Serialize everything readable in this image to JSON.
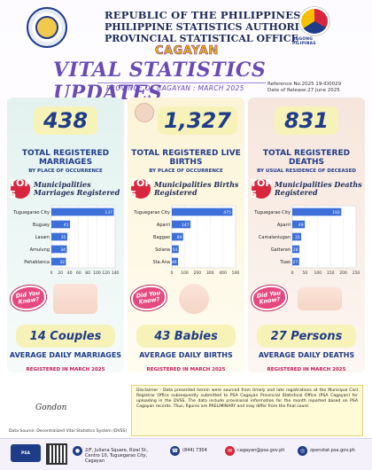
{
  "header": {
    "line1": "REPUBLIC OF THE PHILIPPINES",
    "line2": "PHILIPPINE STATISTICS AUTHORITY",
    "line3": "PROVINCIAL STATISTICAL OFFICE",
    "province": "CAGAYAN",
    "title": "VITAL STATISTICS UPDATES",
    "subtitle": "PROVINCE OF CAGAYAN : MARCH 2025",
    "reference": "Reference No.2025 19-ID0029",
    "release": "Date of Release:27 June 2025",
    "bagong_label": "BAGONG PILIPINAS"
  },
  "columns": [
    {
      "big_number": "438",
      "label": "TOTAL REGISTERED MARRIAGES",
      "sublabel": "BY PLACE OF OCCURRENCE",
      "top5_title": "Municipalities Marriages Registered",
      "average": "14 Couples",
      "avg_label": "AVERAGE DAILY MARRIAGES",
      "reg_label": "REGISTERED IN MARCH 2025"
    },
    {
      "big_number": "1,327",
      "label": "TOTAL REGISTERED LIVE BIRTHS",
      "sublabel": "BY PLACE OF OCCURRENCE",
      "top5_title": "Municipalities Births Registered",
      "average": "43 Babies",
      "avg_label": "AVERAGE DAILY BIRTHS",
      "reg_label": "REGISTERED IN MARCH 2025"
    },
    {
      "big_number": "831",
      "label": "TOTAL REGISTERED DEATHS",
      "sublabel": "BY USUAL RESIDENCE OF DECEASED",
      "top5_title": "Municipalities Deaths Registered",
      "average": "27 Persons",
      "avg_label": "AVERAGE DAILY DEATHS",
      "reg_label": "REGISTERED IN MARCH 2025"
    }
  ],
  "top5_badge": "TOP 5",
  "did_you_know": "Did You Know?",
  "chart_data": [
    {
      "type": "bar",
      "orientation": "horizontal",
      "categories": [
        "Tuguegarao City",
        "Buguey",
        "Lasam",
        "Amulung",
        "Peñablanca"
      ],
      "values": [
        137,
        41,
        35,
        34,
        32
      ],
      "xlim": [
        0,
        140
      ],
      "xticks": [
        "0",
        "20",
        "40",
        "60",
        "80",
        "100",
        "120",
        "140"
      ],
      "color": "#3d6fd9"
    },
    {
      "type": "bar",
      "orientation": "horizontal",
      "categories": [
        "Tuguegarao City",
        "Aparri",
        "Baggao",
        "Solana",
        "Sta.Ana"
      ],
      "values": [
        475,
        147,
        89,
        54,
        49
      ],
      "xlim": [
        0,
        500
      ],
      "xticks": [
        "0",
        "100",
        "200",
        "300",
        "400",
        "500"
      ],
      "color": "#3d6fd9"
    },
    {
      "type": "bar",
      "orientation": "horizontal",
      "categories": [
        "Tuguegarao City",
        "Aparri",
        "Camalaniugan",
        "Gattaran",
        "Tuao"
      ],
      "values": [
        192,
        49,
        35,
        28,
        27
      ],
      "xlim": [
        0,
        250
      ],
      "xticks": [
        "0",
        "50",
        "100",
        "150",
        "200",
        "250"
      ],
      "color": "#3d6fd9"
    }
  ],
  "disclaimer": "Disclaimer : Data presented herein were sourced from timely and late registrations at the Municipal Civil Registrar Office subsequently submitted to PSA Cagayan Provincial Statistical Office (PSA Cagayan) for uploading in the DVSS. The data include provisional information for the month reported based on PSA Cagayan records. Thus, figures are PRELIMINARY and may differ from the final count.",
  "source": "Data Source: Decentralized Vital Statistics System (DVSS)",
  "footer": {
    "address": "2/F, Juliana Square, Rizal St., Centro 10, Tuguegarao City, Cagayan",
    "phone": "(844) 7304",
    "email": "cagayan@psa.gov.ph",
    "website": "openstat.psa.gov.ph"
  }
}
